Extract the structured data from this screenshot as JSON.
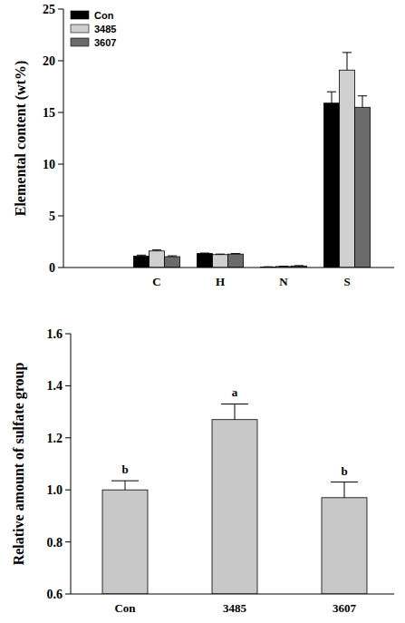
{
  "chart_data": [
    {
      "type": "bar",
      "y_label": "Elemental content (wt%)",
      "categories": [
        "C",
        "H",
        "N",
        "S"
      ],
      "series": [
        {
          "name": "Con",
          "color": "#000000",
          "values": [
            1.1,
            1.35,
            0.05,
            15.9
          ],
          "errors": [
            0.1,
            0.05,
            0.02,
            1.1
          ]
        },
        {
          "name": "3485",
          "color": "#cfcfcf",
          "values": [
            1.6,
            1.25,
            0.1,
            19.1
          ],
          "errors": [
            0.1,
            0.05,
            0.03,
            1.7
          ]
        },
        {
          "name": "3607",
          "color": "#6b6b6b",
          "values": [
            1.05,
            1.3,
            0.15,
            15.5
          ],
          "errors": [
            0.08,
            0.05,
            0.03,
            1.1
          ]
        }
      ],
      "ylim": [
        0,
        25
      ],
      "yticks": [
        0,
        5,
        10,
        15,
        20,
        25
      ],
      "legend": "upper left"
    },
    {
      "type": "bar",
      "y_label": "Relative amount of sulfate group",
      "categories": [
        "Con",
        "3485",
        "3607"
      ],
      "values": [
        1.0,
        1.27,
        0.97
      ],
      "errors": [
        0.035,
        0.06,
        0.06
      ],
      "annotations": [
        "b",
        "a",
        "b"
      ],
      "color": "#c8c8c8",
      "ylim": [
        0.6,
        1.6
      ],
      "yticks": [
        0.6,
        0.8,
        {
          "value": 1,
          "label": "1.0"
        },
        1.2,
        1.4,
        1.6
      ]
    }
  ]
}
